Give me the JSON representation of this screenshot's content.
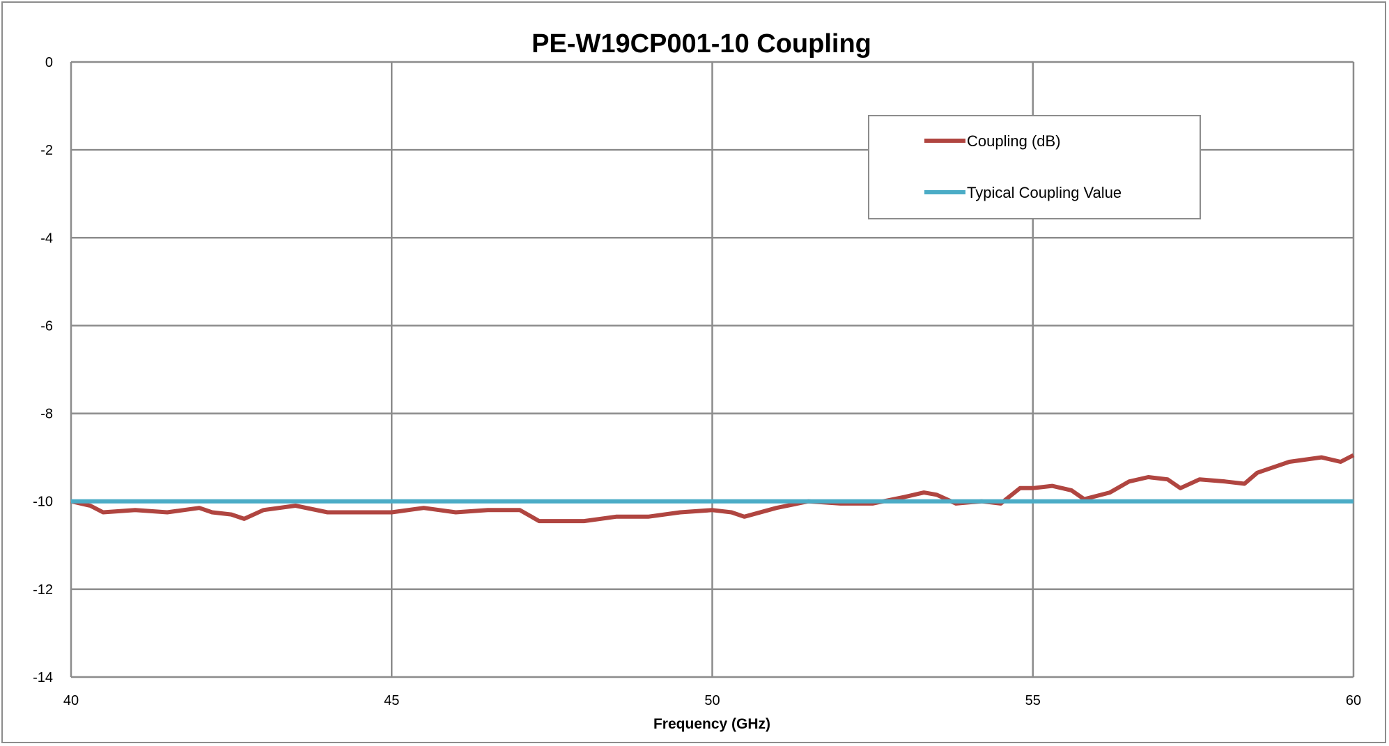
{
  "chart_data": {
    "type": "line",
    "title": "PE-W19CP001-10 Coupling",
    "xlabel": "Frequency (GHz)",
    "ylabel": "",
    "xlim": [
      40,
      60
    ],
    "ylim": [
      -14,
      0
    ],
    "xticks": [
      "40",
      "45",
      "50",
      "55",
      "60"
    ],
    "yticks": [
      "0",
      "-2",
      "-4",
      "-6",
      "-8",
      "-10",
      "-12",
      "-14"
    ],
    "grid": true,
    "legend": "top-right",
    "series": [
      {
        "name": "Coupling (dB)",
        "color": "#b04540",
        "x": [
          40,
          40.3,
          40.5,
          41,
          41.5,
          42,
          42.2,
          42.5,
          42.7,
          43,
          43.5,
          44,
          44.5,
          45,
          45.5,
          46,
          46.5,
          47,
          47.3,
          47.5,
          48,
          48.5,
          49,
          49.5,
          50,
          50.3,
          50.5,
          51,
          51.5,
          52,
          52.5,
          53,
          53.3,
          53.5,
          53.8,
          54.2,
          54.5,
          54.8,
          55,
          55.3,
          55.6,
          55.8,
          56.2,
          56.5,
          56.8,
          57.1,
          57.3,
          57.6,
          58,
          58.3,
          58.5,
          58.8,
          59,
          59.5,
          59.8,
          60
        ],
        "y": [
          -10.0,
          -10.1,
          -10.25,
          -10.2,
          -10.25,
          -10.15,
          -10.25,
          -10.3,
          -10.4,
          -10.2,
          -10.1,
          -10.25,
          -10.25,
          -10.25,
          -10.15,
          -10.25,
          -10.2,
          -10.2,
          -10.45,
          -10.45,
          -10.45,
          -10.35,
          -10.35,
          -10.25,
          -10.2,
          -10.25,
          -10.35,
          -10.15,
          -10.0,
          -10.05,
          -10.05,
          -9.9,
          -9.8,
          -9.85,
          -10.05,
          -10.0,
          -10.05,
          -9.7,
          -9.7,
          -9.65,
          -9.75,
          -9.95,
          -9.8,
          -9.55,
          -9.45,
          -9.5,
          -9.7,
          -9.5,
          -9.55,
          -9.6,
          -9.35,
          -9.2,
          -9.1,
          -9.0,
          -9.1,
          -8.95
        ]
      },
      {
        "name": "Typical Coupling Value",
        "color": "#4bacc6",
        "x": [
          40,
          60
        ],
        "y": [
          -10,
          -10
        ]
      }
    ]
  }
}
